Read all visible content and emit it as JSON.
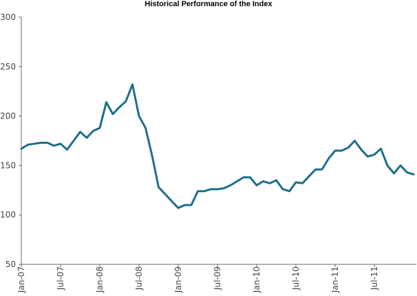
{
  "chart_data": {
    "type": "line",
    "title": "Historical Performance of the Index",
    "categories": [
      "Jan-07",
      null,
      null,
      null,
      null,
      null,
      "Jul-07",
      null,
      null,
      null,
      null,
      null,
      "Jan-08",
      null,
      null,
      null,
      null,
      null,
      "Jul-08",
      null,
      null,
      null,
      null,
      null,
      "Jan-09",
      null,
      null,
      null,
      null,
      null,
      "Jul-09",
      null,
      null,
      null,
      null,
      null,
      "Jan-10",
      null,
      null,
      null,
      null,
      null,
      "Jul-10",
      null,
      null,
      null,
      null,
      null,
      "Jan-11",
      null,
      null,
      null,
      null,
      null,
      "Jul-11",
      null,
      null,
      null,
      null,
      null,
      null
    ],
    "series": [
      {
        "name": "Index",
        "color": "#1b6d8c",
        "values": [
          167,
          171,
          172,
          173,
          173,
          170,
          172,
          166,
          175,
          184,
          178,
          185,
          188,
          214,
          202,
          209,
          215,
          232,
          200,
          188,
          160,
          128,
          121,
          114,
          107,
          110,
          110,
          124,
          124,
          126,
          126,
          127,
          130,
          134,
          138,
          138,
          130,
          134,
          132,
          135,
          126,
          124,
          133,
          132,
          139,
          146,
          146,
          157,
          165,
          165,
          168,
          175,
          166,
          159,
          161,
          167,
          150,
          142,
          150,
          143,
          141
        ]
      }
    ],
    "ylim": [
      50,
      300
    ],
    "yticks": [
      50,
      100,
      150,
      200,
      250,
      300
    ],
    "grid": false
  }
}
